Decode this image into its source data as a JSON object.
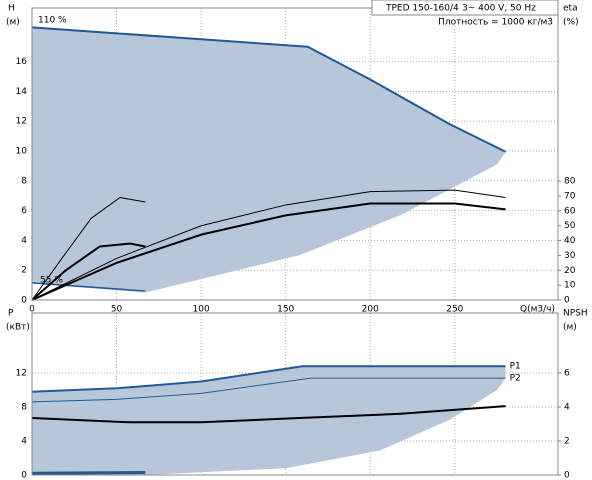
{
  "chart_data": [
    {
      "type": "line",
      "title": "TPED 150-160/4",
      "subtitle": "3~ 400 V, 50 Hz",
      "annotations": [
        "Плотность = 1000 кг/м3",
        "110 %",
        "55 %"
      ],
      "ylabel": "H",
      "yunit": "(м)",
      "y2label": "eta",
      "y2unit": "(%)",
      "xlabel": "Q(м3/ч)",
      "xlim": [
        0,
        311
      ],
      "xticks": [
        0,
        50,
        100,
        150,
        200,
        250
      ],
      "ylim": [
        0,
        19.6
      ],
      "yticks": [
        0,
        2,
        4,
        6,
        8,
        10,
        12,
        14,
        16
      ],
      "y2lim": [
        0,
        196.6
      ],
      "y2ticks": [
        0,
        10,
        20,
        30,
        40,
        50,
        60,
        70,
        80
      ],
      "grid": true,
      "series": [
        {
          "style": "area",
          "color": "#b7c7d9",
          "x": [
            0,
            50,
            100,
            163,
            200,
            247,
            280,
            275,
            218,
            158,
            100,
            67,
            0
          ],
          "values": [
            18.3,
            17.9,
            17.5,
            17.0,
            14.8,
            11.8,
            9.95,
            9.1,
            5.7,
            3.0,
            1.4,
            0.5,
            1.1
          ]
        },
        {
          "style": "line",
          "color": "#1f5a96",
          "width": 2,
          "x": [
            0,
            50,
            100,
            163,
            200,
            247,
            280
          ],
          "values": [
            18.3,
            17.9,
            17.5,
            17.0,
            14.8,
            11.8,
            9.95
          ]
        },
        {
          "style": "line",
          "color": "#1f5a96",
          "width": 1.5,
          "x": [
            0,
            67
          ],
          "values": [
            1.15,
            0.6
          ]
        },
        {
          "style": "line",
          "color": "#000",
          "width": 1,
          "axis": "y2",
          "x": [
            0,
            50,
            100,
            150,
            200,
            250,
            280
          ],
          "values": [
            0,
            28,
            50,
            64,
            73,
            74,
            69
          ]
        },
        {
          "style": "line",
          "color": "#000",
          "width": 2,
          "axis": "y2",
          "x": [
            0,
            50,
            100,
            150,
            200,
            250,
            280
          ],
          "values": [
            0,
            25,
            44,
            57,
            65,
            65,
            61
          ]
        },
        {
          "style": "line",
          "color": "#000",
          "width": 1,
          "axis": "y2",
          "x": [
            0,
            17,
            35,
            52,
            67
          ],
          "values": [
            0,
            27,
            55,
            69,
            66
          ]
        },
        {
          "style": "line",
          "color": "#000",
          "width": 2,
          "axis": "y2",
          "x": [
            0,
            20,
            40,
            58,
            67
          ],
          "values": [
            0,
            20,
            36,
            38,
            36
          ]
        }
      ]
    },
    {
      "type": "line",
      "ylabel": "P",
      "yunit": "(кВт)",
      "y2label": "NPSH",
      "y2unit": "(м)",
      "xlim": [
        0,
        311
      ],
      "ylim": [
        0,
        19.06
      ],
      "yticks": [
        0,
        4,
        8,
        12
      ],
      "y2lim": [
        0,
        9.53
      ],
      "y2ticks": [
        0,
        2,
        4,
        6
      ],
      "grid": true,
      "series": [
        {
          "style": "area",
          "color": "#b7c7d9",
          "x": [
            0,
            50,
            100,
            160,
            280,
            280,
            275,
            247,
            206,
            150,
            67,
            0
          ],
          "values": [
            9.8,
            10.2,
            11.0,
            12.8,
            12.8,
            11.4,
            10,
            6.5,
            2.9,
            0.8,
            0,
            0
          ]
        },
        {
          "style": "line",
          "name": "P1",
          "color": "#1f5a96",
          "width": 2,
          "x": [
            0,
            50,
            100,
            160,
            280
          ],
          "values": [
            9.8,
            10.2,
            11.0,
            12.8,
            12.8
          ]
        },
        {
          "style": "line",
          "name": "P2",
          "color": "#1f5a96",
          "width": 1,
          "x": [
            0,
            50,
            100,
            165,
            280
          ],
          "values": [
            8.6,
            8.9,
            9.6,
            11.4,
            11.4
          ]
        },
        {
          "style": "line",
          "color": "#000",
          "width": 2,
          "axis": "y2",
          "x": [
            0,
            58,
            100,
            158,
            218,
            280
          ],
          "values": [
            3.35,
            3.1,
            3.1,
            3.35,
            3.6,
            4.05
          ]
        },
        {
          "style": "line",
          "color": "#1f5a96",
          "width": 3,
          "x": [
            0,
            67
          ],
          "values": [
            0.2,
            0.3
          ]
        }
      ]
    }
  ]
}
